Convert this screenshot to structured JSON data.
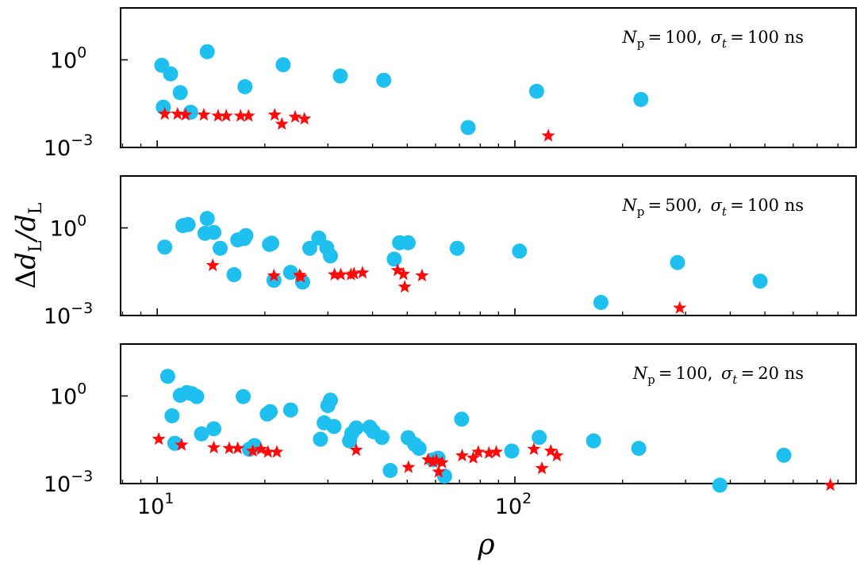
{
  "chart_data": {
    "type": "scatter",
    "xlabel": "ρ",
    "ylabel": "Δd_L/d_L",
    "xscale": "log",
    "yscale": "log",
    "xlim": [
      7.9,
      850
    ],
    "ylim": [
      0.001,
      60
    ],
    "x_ticks": [
      {
        "base": "10",
        "exp": "1",
        "value": 10
      },
      {
        "base": "10",
        "exp": "2",
        "value": 100
      }
    ],
    "y_ticks": [
      {
        "base": "10",
        "exp": "0",
        "value": 1
      },
      {
        "base": "10",
        "exp": "−3",
        "value": 0.001
      }
    ],
    "colors": {
      "circle": "#1ec0f0",
      "star": "#ff0a0a"
    },
    "panels": [
      {
        "annotation": {
          "n_sym": "N",
          "n_sub": "p",
          "n_val": "100",
          "s_sym": "σ",
          "s_sub": "t",
          "s_val": "100 ns"
        },
        "series": [
          {
            "name": "circles",
            "marker": "circle",
            "points": [
              [
                10.3,
                0.65
              ],
              [
                10.4,
                0.024
              ],
              [
                10.9,
                0.33
              ],
              [
                11.6,
                0.075
              ],
              [
                12.4,
                0.016
              ],
              [
                13.8,
                1.9
              ],
              [
                17.6,
                0.12
              ],
              [
                22.5,
                0.68
              ],
              [
                32.5,
                0.28
              ],
              [
                43,
                0.2
              ],
              [
                74,
                0.0048
              ],
              [
                115,
                0.084
              ],
              [
                225,
                0.044
              ]
            ]
          },
          {
            "name": "stars",
            "marker": "star",
            "points": [
              [
                10.5,
                0.014
              ],
              [
                11.4,
                0.014
              ],
              [
                12,
                0.013
              ],
              [
                13.5,
                0.013
              ],
              [
                14.8,
                0.012
              ],
              [
                15.6,
                0.012
              ],
              [
                17.1,
                0.012
              ],
              [
                18,
                0.012
              ],
              [
                21.3,
                0.013
              ],
              [
                22.3,
                0.0063
              ],
              [
                24.3,
                0.011
              ],
              [
                25.8,
                0.0095
              ],
              [
                124,
                0.0025
              ]
            ]
          }
        ]
      },
      {
        "annotation": {
          "n_sym": "N",
          "n_sub": "p",
          "n_val": "500",
          "s_sym": "σ",
          "s_sub": "t",
          "s_val": "100 ns"
        },
        "series": [
          {
            "name": "circles",
            "marker": "circle",
            "points": [
              [
                10.5,
                0.22
              ],
              [
                11.8,
                1.2
              ],
              [
                12.2,
                1.3
              ],
              [
                13.6,
                0.65
              ],
              [
                13.8,
                2.1
              ],
              [
                14.4,
                0.7
              ],
              [
                15,
                0.2
              ],
              [
                16.4,
                0.025
              ],
              [
                16.8,
                0.39
              ],
              [
                17.5,
                0.43
              ],
              [
                17.7,
                0.55
              ],
              [
                20.6,
                0.27
              ],
              [
                20.9,
                0.3
              ],
              [
                21.2,
                0.016
              ],
              [
                23.6,
                0.03
              ],
              [
                25.5,
                0.014
              ],
              [
                26.7,
                0.2
              ],
              [
                28.3,
                0.45
              ],
              [
                29.8,
                0.21
              ],
              [
                30.5,
                0.11
              ],
              [
                46,
                0.085
              ],
              [
                47.6,
                0.31
              ],
              [
                50.3,
                0.31
              ],
              [
                69,
                0.2
              ],
              [
                103,
                0.16
              ],
              [
                174,
                0.0028
              ],
              [
                285,
                0.065
              ],
              [
                485,
                0.015
              ]
            ]
          },
          {
            "name": "stars",
            "marker": "star",
            "points": [
              [
                14.3,
                0.052
              ],
              [
                21.2,
                0.023
              ],
              [
                25,
                0.024
              ],
              [
                25.2,
                0.021
              ],
              [
                31.3,
                0.025
              ],
              [
                32.6,
                0.025
              ],
              [
                34.8,
                0.025
              ],
              [
                35.5,
                0.027
              ],
              [
                37.5,
                0.029
              ],
              [
                47,
                0.035
              ],
              [
                48.8,
                0.026
              ],
              [
                49.2,
                0.0095
              ],
              [
                55,
                0.023
              ],
              [
                289,
                0.0018
              ]
            ]
          }
        ]
      },
      {
        "annotation": {
          "n_sym": "N",
          "n_sub": "p",
          "n_val": "100",
          "s_sym": "σ",
          "s_sub": "t",
          "s_val": "20 ns"
        },
        "series": [
          {
            "name": "circles",
            "marker": "circle",
            "points": [
              [
                10.7,
                4.7
              ],
              [
                11,
                0.21
              ],
              [
                11.2,
                0.024
              ],
              [
                11.6,
                1.05
              ],
              [
                12.1,
                1.3
              ],
              [
                12.5,
                1.2
              ],
              [
                12.9,
                0.95
              ],
              [
                13.3,
                0.05
              ],
              [
                14.4,
                0.075
              ],
              [
                17.4,
                0.95
              ],
              [
                18.1,
                0.015
              ],
              [
                18.7,
                0.02
              ],
              [
                20.3,
                0.24
              ],
              [
                20.7,
                0.29
              ],
              [
                23.6,
                0.33
              ],
              [
                28.6,
                0.033
              ],
              [
                29.3,
                0.12
              ],
              [
                30,
                0.47
              ],
              [
                30.5,
                0.72
              ],
              [
                31.2,
                0.09
              ],
              [
                34.5,
                0.029
              ],
              [
                35,
                0.052
              ],
              [
                36,
                0.08
              ],
              [
                39.3,
                0.085
              ],
              [
                40.2,
                0.06
              ],
              [
                42.5,
                0.038
              ],
              [
                44.8,
                0.0028
              ],
              [
                50.3,
                0.037
              ],
              [
                52.5,
                0.022
              ],
              [
                54,
                0.016
              ],
              [
                59,
                0.0065
              ],
              [
                61,
                0.0074
              ],
              [
                63.6,
                0.0018
              ],
              [
                71,
                0.16
              ],
              [
                98,
                0.013
              ],
              [
                117,
                0.038
              ],
              [
                166,
                0.029
              ],
              [
                222,
                0.016
              ],
              [
                374,
                0.00088
              ],
              [
                565,
                0.0093
              ]
            ]
          },
          {
            "name": "stars",
            "marker": "star",
            "points": [
              [
                10.1,
                0.033
              ],
              [
                11.7,
                0.021
              ],
              [
                14.4,
                0.017
              ],
              [
                15.9,
                0.016
              ],
              [
                16.8,
                0.016
              ],
              [
                18.5,
                0.013
              ],
              [
                19.5,
                0.015
              ],
              [
                20.4,
                0.012
              ],
              [
                21.6,
                0.012
              ],
              [
                36,
                0.014
              ],
              [
                50.4,
                0.0036
              ],
              [
                57.2,
                0.0065
              ],
              [
                59,
                0.0055
              ],
              [
                60.3,
                0.0062
              ],
              [
                61.2,
                0.0025
              ],
              [
                62.6,
                0.0052
              ],
              [
                71.2,
                0.009
              ],
              [
                76.5,
                0.0075
              ],
              [
                79,
                0.012
              ],
              [
                84.6,
                0.011
              ],
              [
                88.7,
                0.012
              ],
              [
                113,
                0.015
              ],
              [
                119,
                0.0033
              ],
              [
                126,
                0.013
              ],
              [
                131,
                0.009
              ],
              [
                762,
                0.00088
              ]
            ]
          }
        ]
      }
    ]
  }
}
